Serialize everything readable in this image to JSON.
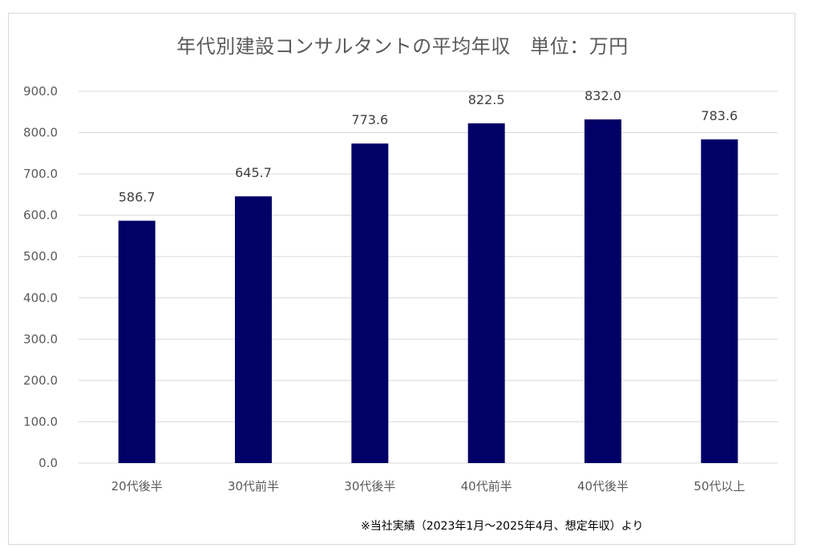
{
  "chart_data": {
    "type": "bar",
    "title": "年代別建設コンサルタントの平均年収　単位：万円",
    "categories": [
      "20代後半",
      "30代前半",
      "30代後半",
      "40代前半",
      "40代後半",
      "50代以上"
    ],
    "values": [
      586.7,
      645.7,
      773.6,
      822.5,
      832.0,
      783.6
    ],
    "value_labels": [
      "586.7",
      "645.7",
      "773.6",
      "822.5",
      "832.0",
      "783.6"
    ],
    "ylim": [
      0,
      900
    ],
    "y_ticks": [
      "0.0",
      "100.0",
      "200.0",
      "300.0",
      "400.0",
      "500.0",
      "600.0",
      "700.0",
      "800.0",
      "900.0"
    ],
    "grid": true,
    "xlabel": "",
    "ylabel": "",
    "bar_color": "#000066",
    "grid_color": "#d9d9d9"
  },
  "footnote": "※当社実績（2023年1月～2025年4月、想定年収）より"
}
